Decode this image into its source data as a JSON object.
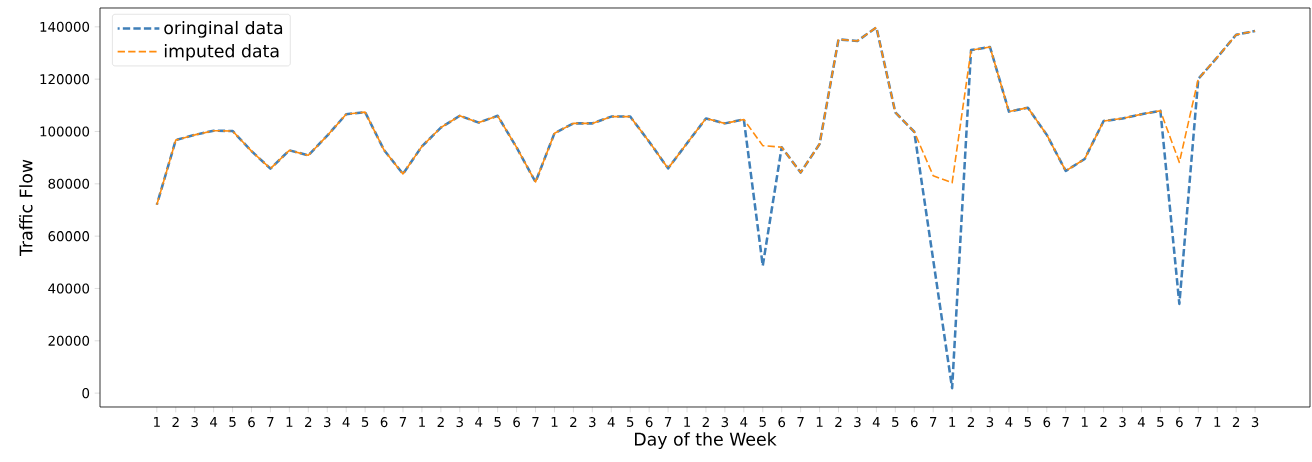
{
  "chart_data": {
    "type": "line",
    "xlabel": "Day of the Week",
    "ylabel": "Traffic Flow",
    "categories": [
      "1",
      "2",
      "3",
      "4",
      "5",
      "6",
      "7",
      "1",
      "2",
      "3",
      "4",
      "5",
      "6",
      "7",
      "1",
      "2",
      "3",
      "4",
      "5",
      "6",
      "7",
      "1",
      "2",
      "3",
      "4",
      "5",
      "6",
      "7",
      "1",
      "2",
      "3",
      "4",
      "5",
      "6",
      "7",
      "1",
      "2",
      "3",
      "4",
      "5",
      "6",
      "7",
      "1",
      "2",
      "3",
      "4",
      "5",
      "6",
      "7",
      "1",
      "2",
      "3",
      "4",
      "5",
      "6",
      "7",
      "1",
      "2",
      "3"
    ],
    "series": [
      {
        "name": "oringinal data",
        "color": "#3f7fb8",
        "values": [
          72000,
          96700,
          98700,
          100300,
          100200,
          92500,
          85800,
          92800,
          90900,
          98400,
          106600,
          107400,
          92900,
          83800,
          94300,
          101500,
          106000,
          103400,
          106000,
          93900,
          80700,
          99300,
          103100,
          103100,
          105700,
          105700,
          96100,
          85900,
          95500,
          105000,
          103100,
          104600,
          48700,
          94000,
          84300,
          95200,
          135200,
          134600,
          139800,
          107300,
          99900,
          51000,
          1900,
          131100,
          132300,
          107600,
          109100,
          98700,
          84900,
          89500,
          104000,
          105000,
          106600,
          107900,
          34100,
          120100,
          128300,
          137000,
          138400
        ]
      },
      {
        "name": "imputed data",
        "color": "#ff8c0e",
        "values": [
          72000,
          96700,
          98700,
          100300,
          100200,
          92500,
          85800,
          92800,
          90900,
          98400,
          106600,
          107400,
          92900,
          83800,
          94300,
          101500,
          106000,
          103400,
          106000,
          93900,
          80700,
          99300,
          103100,
          103100,
          105700,
          105700,
          96100,
          85900,
          95500,
          105000,
          103100,
          104600,
          94600,
          94000,
          84300,
          95200,
          135200,
          134600,
          139800,
          107300,
          99900,
          83100,
          80400,
          131100,
          132300,
          107600,
          109100,
          98700,
          84900,
          89500,
          104000,
          105000,
          106600,
          107900,
          88200,
          120100,
          128300,
          137000,
          138400
        ]
      }
    ],
    "ylim": [
      -5300,
      147200
    ],
    "yticks": [
      0,
      20000,
      40000,
      60000,
      80000,
      100000,
      120000,
      140000
    ],
    "legend": "top left",
    "line_style": "dashed",
    "marker": "none"
  }
}
